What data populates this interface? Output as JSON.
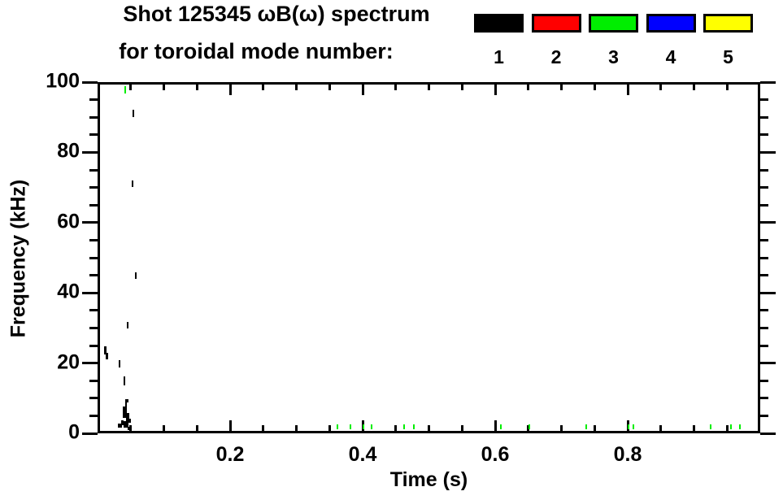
{
  "title": {
    "line1": "Shot 125345 ωB(ω) spectrum",
    "line2": "for toroidal mode number:"
  },
  "legend": {
    "position": "top-right",
    "modes": [
      {
        "label": "1",
        "color": "#000000"
      },
      {
        "label": "2",
        "color": "#ff0000"
      },
      {
        "label": "3",
        "color": "#00ee00"
      },
      {
        "label": "4",
        "color": "#0000ff"
      },
      {
        "label": "5",
        "color": "#ffff00"
      }
    ]
  },
  "chart_data": {
    "type": "scatter",
    "title": "Shot 125345 ωB(ω) spectrum for toroidal mode number: 1 2 3 4 5",
    "xlabel": "Time (s)",
    "ylabel": "Frequency (kHz)",
    "xlim": [
      0,
      1.0
    ],
    "ylim": [
      0,
      100
    ],
    "x_major_ticks": [
      0.2,
      0.4,
      0.6,
      0.8
    ],
    "x_tick_labels": [
      "0.2",
      "0.4",
      "0.6",
      "0.8"
    ],
    "x_minor_step": 0.05,
    "y_major_ticks": [
      0,
      20,
      40,
      60,
      80,
      100
    ],
    "y_tick_labels": [
      "0",
      "20",
      "40",
      "60",
      "80",
      "100"
    ],
    "y_minor_step": 5,
    "grid": false,
    "frame": "box",
    "series": [
      {
        "name": "mode 1",
        "mode_number": 1,
        "color": "#000000",
        "points": [
          {
            "t": 0.012,
            "f": 23.5,
            "w": 3,
            "h": 10
          },
          {
            "t": 0.014,
            "f": 22.0,
            "w": 3,
            "h": 8
          },
          {
            "t": 0.033,
            "f": 19.8,
            "w": 2,
            "h": 9
          },
          {
            "t": 0.045,
            "f": 30.8,
            "w": 2,
            "h": 8
          },
          {
            "t": 0.04,
            "f": 14.9,
            "w": 2,
            "h": 11
          },
          {
            "t": 0.043,
            "f": 8.6,
            "w": 2,
            "h": 9
          },
          {
            "t": 0.0455,
            "f": 9.3,
            "w": 2,
            "h": 4
          },
          {
            "t": 0.0415,
            "f": 6.0,
            "w": 5,
            "h": 14
          },
          {
            "t": 0.0455,
            "f": 4.5,
            "w": 4,
            "h": 12
          },
          {
            "t": 0.0435,
            "f": 2.5,
            "w": 6,
            "h": 8
          },
          {
            "t": 0.038,
            "f": 3.0,
            "w": 3,
            "h": 6
          },
          {
            "t": 0.0335,
            "f": 2.2,
            "w": 5,
            "h": 5
          },
          {
            "t": 0.047,
            "f": 1.5,
            "w": 3,
            "h": 4
          },
          {
            "t": 0.049,
            "f": 3.5,
            "w": 2,
            "h": 5
          },
          {
            "t": 0.054,
            "f": 91.0,
            "w": 2,
            "h": 9
          },
          {
            "t": 0.053,
            "f": 71.0,
            "w": 2,
            "h": 8
          },
          {
            "t": 0.058,
            "f": 45.0,
            "w": 2,
            "h": 8
          }
        ]
      },
      {
        "name": "mode 3",
        "mode_number": 3,
        "color": "#00ee00",
        "points": [
          {
            "t": 0.042,
            "f": 97.8,
            "w": 2,
            "h": 9
          },
          {
            "t": 0.362,
            "f": 1.8,
            "w": 2,
            "h": 6
          },
          {
            "t": 0.382,
            "f": 1.8,
            "w": 2,
            "h": 6
          },
          {
            "t": 0.401,
            "f": 1.8,
            "w": 2,
            "h": 6
          },
          {
            "t": 0.413,
            "f": 1.8,
            "w": 2,
            "h": 6
          },
          {
            "t": 0.462,
            "f": 1.8,
            "w": 2,
            "h": 6
          },
          {
            "t": 0.477,
            "f": 1.8,
            "w": 2,
            "h": 6
          },
          {
            "t": 0.609,
            "f": 1.8,
            "w": 2,
            "h": 6
          },
          {
            "t": 0.652,
            "f": 1.8,
            "w": 2,
            "h": 6
          },
          {
            "t": 0.738,
            "f": 1.8,
            "w": 2,
            "h": 6
          },
          {
            "t": 0.801,
            "f": 1.8,
            "w": 2,
            "h": 6
          },
          {
            "t": 0.809,
            "f": 1.8,
            "w": 2,
            "h": 6
          },
          {
            "t": 0.925,
            "f": 1.8,
            "w": 2,
            "h": 6
          },
          {
            "t": 0.956,
            "f": 1.8,
            "w": 2,
            "h": 6
          },
          {
            "t": 0.969,
            "f": 1.8,
            "w": 2,
            "h": 6
          }
        ]
      }
    ]
  }
}
